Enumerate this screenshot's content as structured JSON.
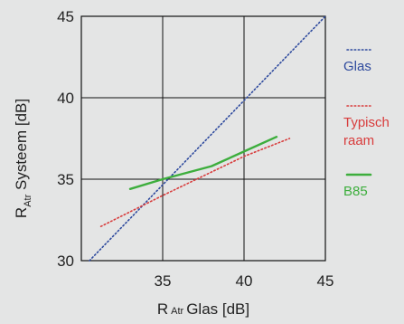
{
  "chart_data": {
    "type": "line",
    "xlabel_prefix": "R",
    "xlabel_sub": "Atr",
    "xlabel_rest": "Glas [dB]",
    "ylabel_prefix": "R",
    "ylabel_sub": "Atr",
    "ylabel_rest": " Systeem [dB]",
    "xlim": [
      30,
      45
    ],
    "ylim": [
      30,
      45
    ],
    "x_ticks": [
      35,
      40,
      45
    ],
    "y_ticks": [
      30,
      35,
      40,
      45
    ],
    "grid": true,
    "legend_position": "right",
    "series": [
      {
        "name": "Glas",
        "color": "#2e4a9e",
        "style": "dotted",
        "x": [
          30.5,
          45
        ],
        "y": [
          30,
          45
        ]
      },
      {
        "name": "Typisch raam",
        "color": "#d83c3c",
        "style": "dotted",
        "x": [
          31.2,
          35,
          40,
          42.8
        ],
        "y": [
          32.1,
          34.0,
          36.4,
          37.5
        ]
      },
      {
        "name": "B85",
        "color": "#3dae3d",
        "style": "solid",
        "x": [
          33,
          35,
          38,
          40,
          42
        ],
        "y": [
          34.4,
          35.0,
          35.8,
          36.7,
          37.6
        ]
      }
    ],
    "legend_labels": [
      [
        "Glas"
      ],
      [
        "Typisch",
        "raam"
      ],
      [
        "B85"
      ]
    ]
  }
}
